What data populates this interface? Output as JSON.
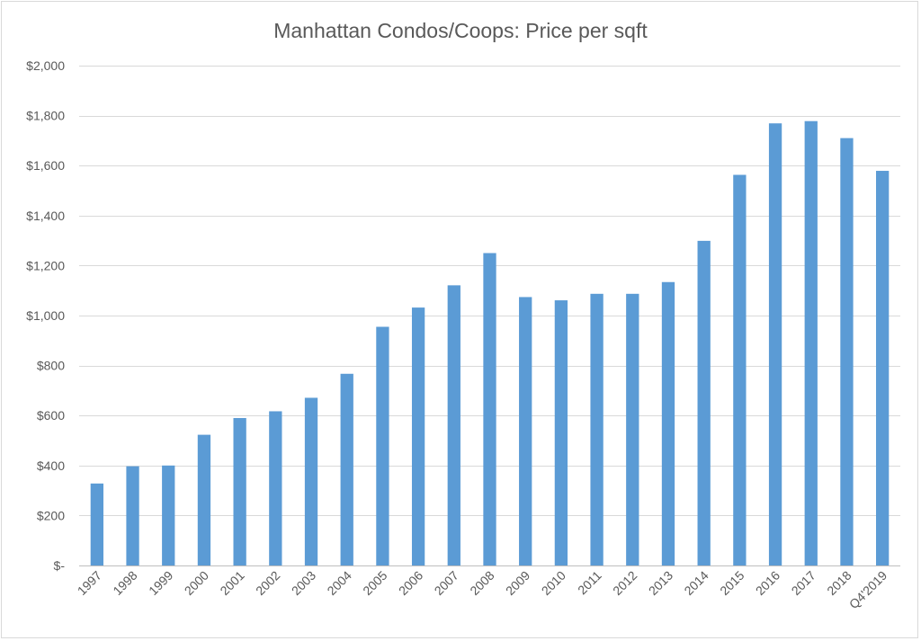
{
  "chart_data": {
    "type": "bar",
    "title": "Manhattan Condos/Coops:  Price per sqft",
    "xlabel": "",
    "ylabel": "",
    "categories": [
      "1997",
      "1998",
      "1999",
      "2000",
      "2001",
      "2002",
      "2003",
      "2004",
      "2005",
      "2006",
      "2007",
      "2008",
      "2009",
      "2010",
      "2011",
      "2012",
      "2013",
      "2014",
      "2015",
      "2016",
      "2017",
      "2018",
      "Q4'2019"
    ],
    "values": [
      328,
      397,
      400,
      523,
      590,
      617,
      671,
      767,
      955,
      1032,
      1121,
      1250,
      1074,
      1061,
      1087,
      1087,
      1134,
      1299,
      1563,
      1769,
      1778,
      1710,
      1579
    ],
    "ylim": [
      0,
      2000
    ],
    "yticks": [
      0,
      200,
      400,
      600,
      800,
      1000,
      1200,
      1400,
      1600,
      1800,
      2000
    ],
    "ytick_labels": [
      "$-",
      "$200",
      "$400",
      "$600",
      "$800",
      "$1,000",
      "$1,200",
      "$1,400",
      "$1,600",
      "$1,800",
      "$2,000"
    ],
    "grid": true,
    "legend": "none",
    "bar_color": "#5b9bd5"
  }
}
